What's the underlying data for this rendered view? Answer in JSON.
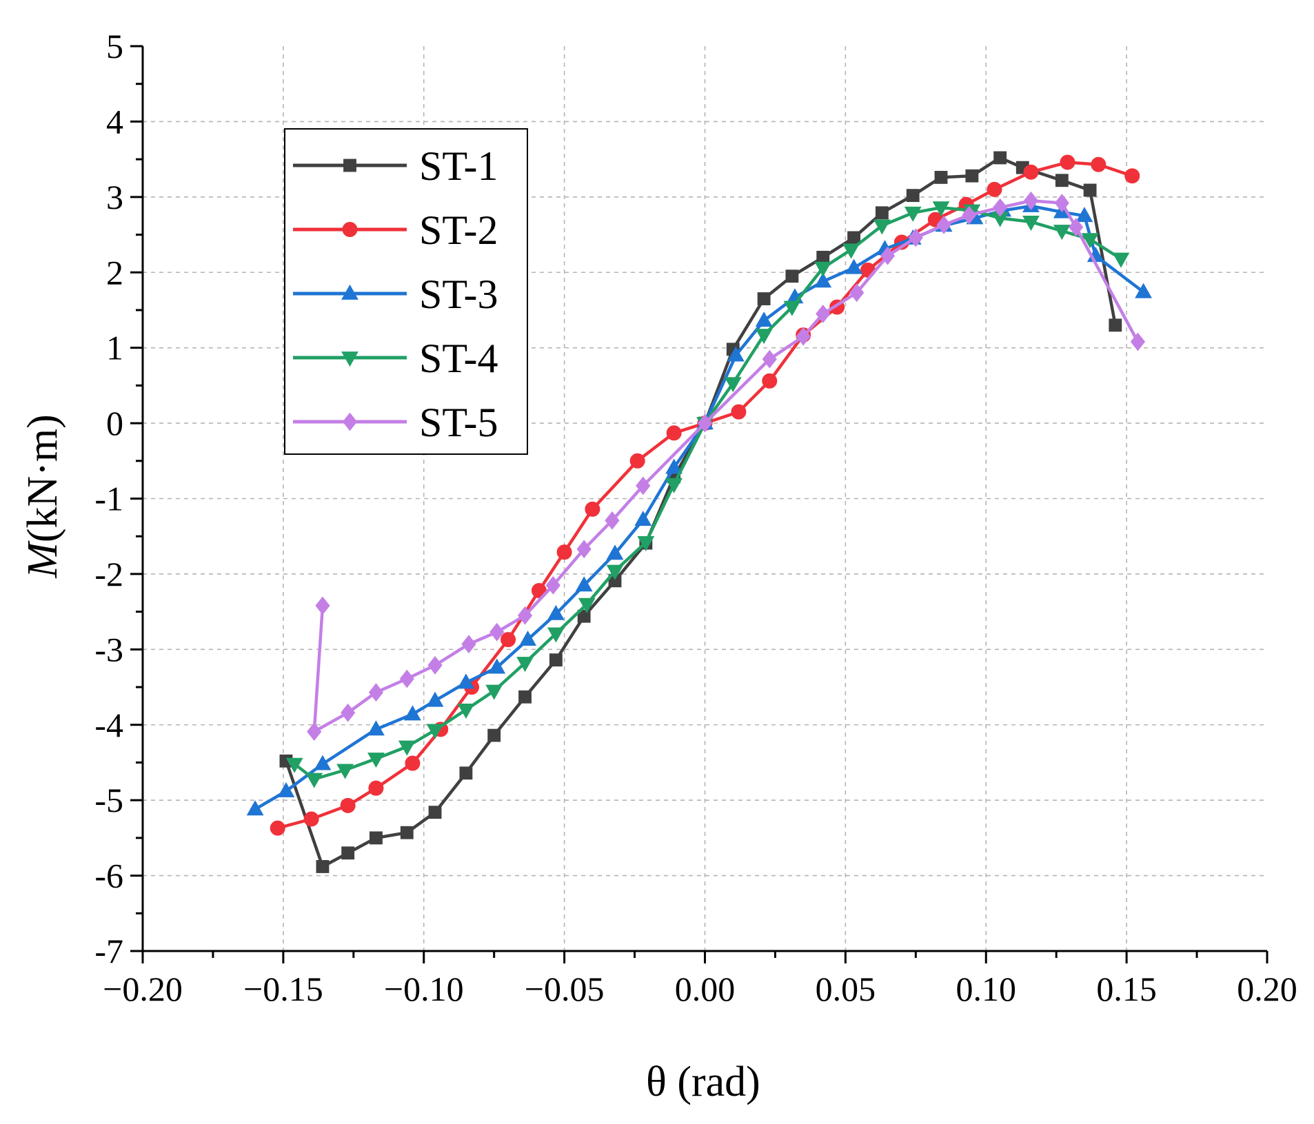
{
  "chart_data": {
    "type": "line",
    "title": "",
    "xlabel": "θ (rad)",
    "ylabel": {
      "italic": "M",
      "rest": "(kN·m)"
    },
    "xlim": [
      -0.2,
      0.2
    ],
    "ylim": [
      -7,
      5
    ],
    "xticks": [
      -0.2,
      -0.15,
      -0.1,
      -0.05,
      0.0,
      0.05,
      0.1,
      0.15,
      0.2
    ],
    "xtick_labels": [
      "−0.20",
      "−0.15",
      "−0.10",
      "−0.05",
      "0.00",
      "0.05",
      "0.10",
      "0.15",
      "0.20"
    ],
    "yticks": [
      5,
      4,
      3,
      2,
      1,
      0,
      -1,
      -2,
      -3,
      -4,
      -5,
      -6,
      -7
    ],
    "ytick_labels": [
      "5",
      "4",
      "3",
      "2",
      "1",
      "0",
      "-1",
      "-2",
      "-3",
      "-4",
      "-5",
      "-6",
      "-7"
    ],
    "grid": true,
    "legend_position": "top-left",
    "series": [
      {
        "name": "ST-1",
        "color": "#404040",
        "marker": "square",
        "x": [
          -0.149,
          -0.136,
          -0.127,
          -0.117,
          -0.106,
          -0.096,
          -0.085,
          -0.075,
          -0.064,
          -0.053,
          -0.043,
          -0.032,
          -0.021,
          -0.011,
          0.0,
          0.01,
          0.021,
          0.031,
          0.042,
          0.053,
          0.063,
          0.074,
          0.084,
          0.095,
          0.105,
          0.113,
          0.127,
          0.137,
          0.146
        ],
        "y": [
          -4.48,
          -5.88,
          -5.7,
          -5.5,
          -5.43,
          -5.16,
          -4.64,
          -4.14,
          -3.63,
          -3.14,
          -2.56,
          -2.09,
          -1.59,
          -0.71,
          0.0,
          0.98,
          1.65,
          1.95,
          2.2,
          2.46,
          2.79,
          3.02,
          3.26,
          3.28,
          3.52,
          3.39,
          3.22,
          3.09,
          1.3
        ]
      },
      {
        "name": "ST-2",
        "color": "#f0313a",
        "marker": "circle",
        "x": [
          -0.152,
          -0.14,
          -0.127,
          -0.117,
          -0.104,
          -0.094,
          -0.083,
          -0.07,
          -0.059,
          -0.05,
          -0.04,
          -0.024,
          -0.011,
          0.0,
          0.012,
          0.023,
          0.035,
          0.047,
          0.058,
          0.07,
          0.082,
          0.093,
          0.103,
          0.116,
          0.129,
          0.14,
          0.152
        ],
        "y": [
          -5.37,
          -5.25,
          -5.07,
          -4.84,
          -4.51,
          -4.06,
          -3.5,
          -2.87,
          -2.22,
          -1.71,
          -1.14,
          -0.5,
          -0.13,
          0.0,
          0.15,
          0.56,
          1.17,
          1.54,
          2.03,
          2.4,
          2.7,
          2.9,
          3.1,
          3.33,
          3.46,
          3.43,
          3.28
        ]
      },
      {
        "name": "ST-3",
        "color": "#1f75d4",
        "marker": "triangle",
        "x": [
          -0.16,
          -0.149,
          -0.136,
          -0.117,
          -0.104,
          -0.096,
          -0.085,
          -0.074,
          -0.063,
          -0.053,
          -0.043,
          -0.032,
          -0.022,
          -0.011,
          0.0,
          0.011,
          0.021,
          0.032,
          0.042,
          0.053,
          0.064,
          0.074,
          0.085,
          0.096,
          0.106,
          0.116,
          0.127,
          0.135,
          0.139,
          0.156
        ],
        "y": [
          -5.12,
          -4.88,
          -4.52,
          -4.06,
          -3.86,
          -3.68,
          -3.44,
          -3.24,
          -2.87,
          -2.53,
          -2.15,
          -1.73,
          -1.28,
          -0.59,
          0.0,
          0.9,
          1.36,
          1.67,
          1.88,
          2.06,
          2.31,
          2.45,
          2.62,
          2.72,
          2.82,
          2.88,
          2.8,
          2.75,
          2.22,
          1.74
        ]
      },
      {
        "name": "ST-4",
        "color": "#20a064",
        "marker": "triangle-down",
        "x": [
          -0.146,
          -0.139,
          -0.128,
          -0.117,
          -0.106,
          -0.096,
          -0.085,
          -0.075,
          -0.064,
          -0.053,
          -0.042,
          -0.032,
          -0.021,
          -0.011,
          0.0,
          0.01,
          0.021,
          0.031,
          0.042,
          0.052,
          0.063,
          0.074,
          0.084,
          0.095,
          0.105,
          0.116,
          0.127,
          0.137,
          0.148
        ],
        "y": [
          -4.52,
          -4.72,
          -4.6,
          -4.45,
          -4.29,
          -4.07,
          -3.8,
          -3.55,
          -3.18,
          -2.79,
          -2.4,
          -1.96,
          -1.58,
          -0.81,
          0.0,
          0.53,
          1.17,
          1.54,
          2.06,
          2.3,
          2.62,
          2.79,
          2.86,
          2.82,
          2.72,
          2.67,
          2.55,
          2.44,
          2.18
        ]
      },
      {
        "name": "ST-5",
        "color": "#c47fe6",
        "marker": "diamond",
        "x": [
          -0.136,
          -0.139,
          -0.127,
          -0.117,
          -0.106,
          -0.096,
          -0.084,
          -0.074,
          -0.064,
          -0.054,
          -0.043,
          -0.033,
          -0.022,
          0.0,
          0.023,
          0.035,
          0.042,
          0.054,
          0.065,
          0.075,
          0.085,
          0.094,
          0.105,
          0.116,
          0.127,
          0.132,
          0.154
        ],
        "y": [
          -2.42,
          -4.09,
          -3.84,
          -3.57,
          -3.39,
          -3.21,
          -2.93,
          -2.77,
          -2.55,
          -2.15,
          -1.67,
          -1.29,
          -0.83,
          0.0,
          0.85,
          1.15,
          1.45,
          1.73,
          2.22,
          2.46,
          2.63,
          2.76,
          2.86,
          2.95,
          2.92,
          2.6,
          1.08
        ]
      }
    ]
  }
}
